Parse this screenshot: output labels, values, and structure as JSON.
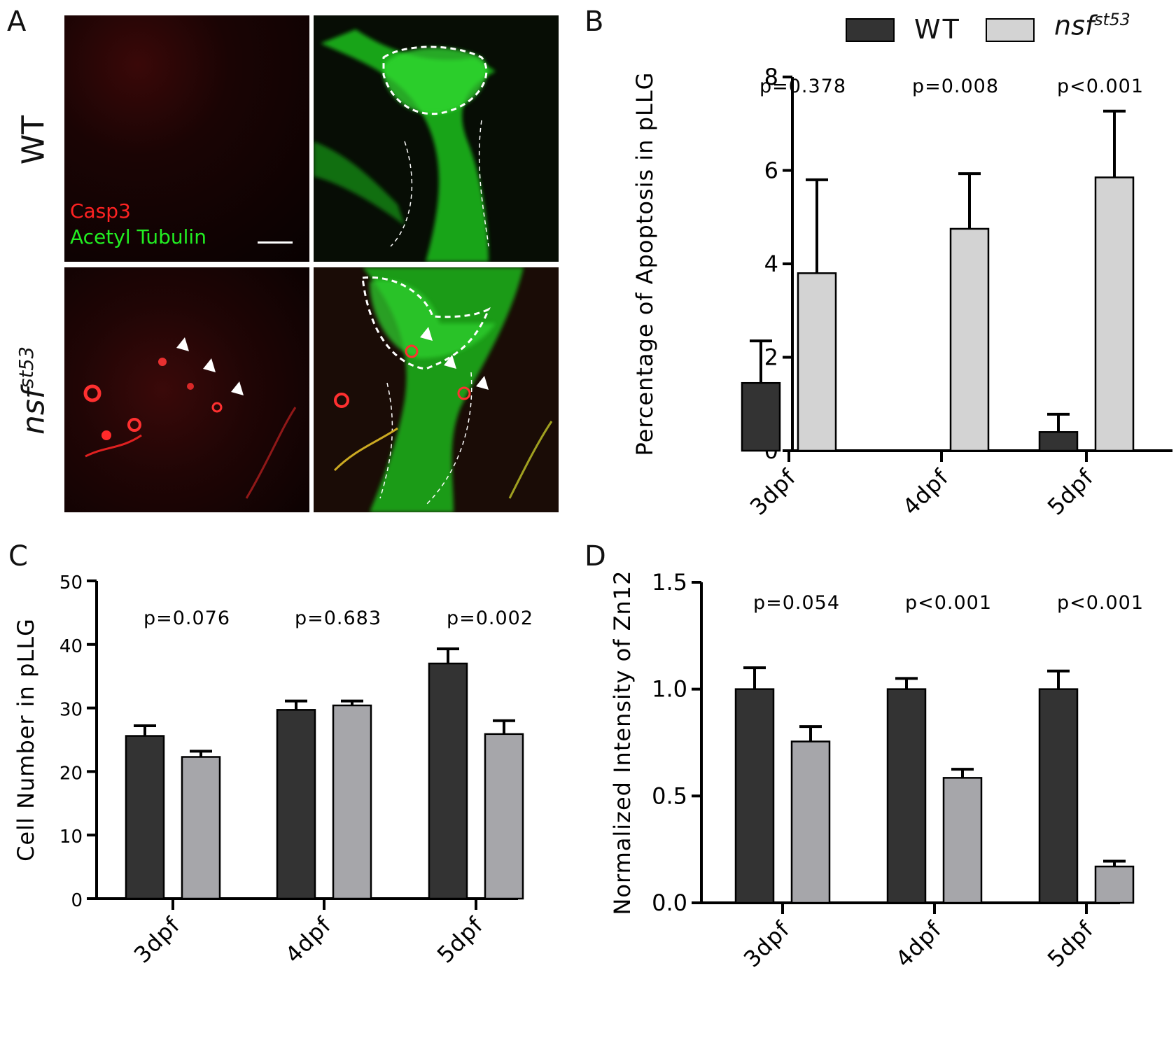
{
  "panels": {
    "a": "A",
    "b": "B",
    "c": "C",
    "d": "D"
  },
  "panel_a": {
    "row_wt": "WT",
    "row_mut_base": "nsf",
    "row_mut_sup": "st53",
    "stain_red": "Casp3",
    "stain_green": "Acetyl Tubulin",
    "colors": {
      "red": "#ff2222",
      "green": "#22ee22"
    }
  },
  "legend": {
    "wt": "WT",
    "mut_base": "nsf",
    "mut_sup": "st53",
    "wt_color": "#333333",
    "mut_color_b": "#d3d3d3",
    "mut_color_cd": "#a6a6aa"
  },
  "chart_data": [
    {
      "id": "B",
      "type": "bar",
      "categories": [
        "3dpf",
        "4dpf",
        "5dpf"
      ],
      "ylabel": "Percentage of Apoptosis in pLLG",
      "ylim": [
        0,
        8
      ],
      "yticks": [
        0,
        2,
        4,
        6,
        8
      ],
      "series": [
        {
          "name": "WT",
          "values": [
            1.45,
            0,
            0.4
          ],
          "errors": [
            0.9,
            0,
            0.38
          ]
        },
        {
          "name": "nsfst53",
          "values": [
            3.8,
            4.75,
            5.85
          ],
          "errors": [
            2.0,
            1.18,
            1.42
          ]
        }
      ],
      "pvalues": [
        "p=0.378",
        "p=0.008",
        "p<0.001"
      ]
    },
    {
      "id": "C",
      "type": "bar",
      "categories": [
        "3dpf",
        "4dpf",
        "5dpf"
      ],
      "ylabel": "Cell Number in pLLG",
      "ylim": [
        0,
        50
      ],
      "yticks": [
        0,
        10,
        20,
        30,
        40,
        50
      ],
      "series": [
        {
          "name": "WT",
          "values": [
            25.6,
            29.7,
            37.0
          ],
          "errors": [
            1.6,
            1.4,
            2.3
          ]
        },
        {
          "name": "nsfst53",
          "values": [
            22.3,
            30.4,
            25.9
          ],
          "errors": [
            0.9,
            0.7,
            2.1
          ]
        }
      ],
      "pvalues": [
        "p=0.076",
        "p=0.683",
        "p=0.002"
      ]
    },
    {
      "id": "D",
      "type": "bar",
      "categories": [
        "3dpf",
        "4dpf",
        "5dpf"
      ],
      "ylabel": "Normalized Intensity of Zn12",
      "ylim": [
        0,
        1.5
      ],
      "yticks": [
        "0.0",
        "0.5",
        "1.0",
        "1.5"
      ],
      "series": [
        {
          "name": "WT",
          "values": [
            1.0,
            1.0,
            1.0
          ],
          "errors": [
            0.1,
            0.05,
            0.085
          ]
        },
        {
          "name": "nsfst53",
          "values": [
            0.755,
            0.585,
            0.17
          ],
          "errors": [
            0.07,
            0.04,
            0.025
          ]
        }
      ],
      "pvalues": [
        "p=0.054",
        "p<0.001",
        "p<0.001"
      ]
    }
  ]
}
